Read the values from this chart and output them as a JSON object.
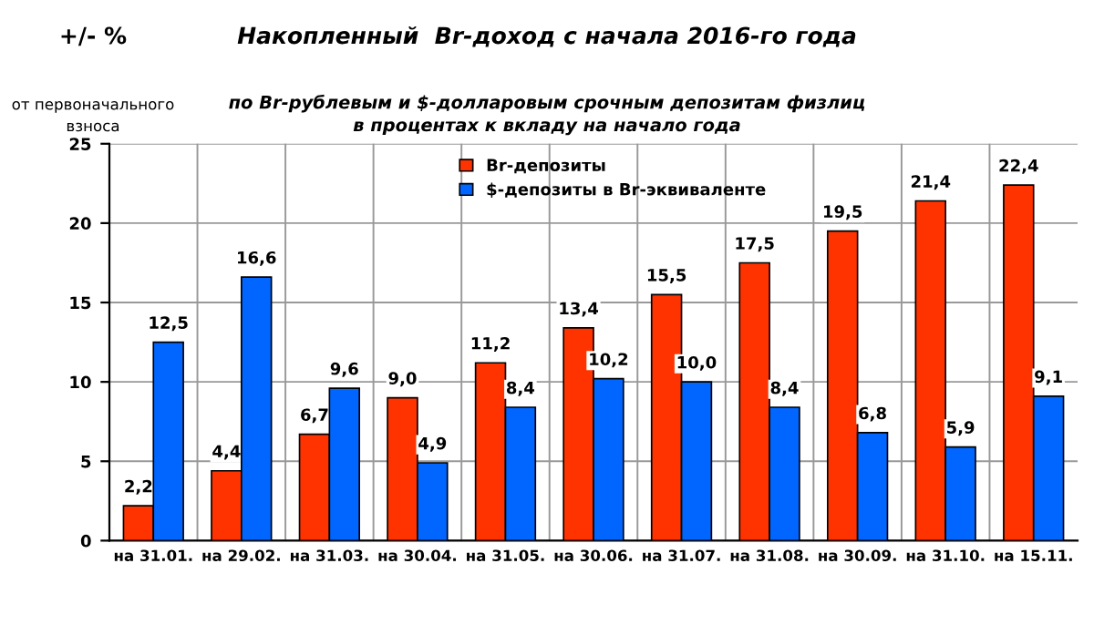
{
  "chart_data": {
    "type": "bar",
    "title": "Накопленный  Br-доход с начала 2016-го года",
    "subtitle": "по Br-рублевым и $-долларовым срочным депозитам физлиц\nв процентах к вкладу на начало года",
    "ylabel": "+/- %\nот первоначального\nвзноса",
    "categories": [
      "на 31.01.",
      "на 29.02.",
      "на 31.03.",
      "на 30.04.",
      "на 31.05.",
      "на 30.06.",
      "на 31.07.",
      "на 31.08.",
      "на 30.09.",
      "на 31.10.",
      "на 15.11."
    ],
    "series": [
      {
        "name": "Br-депозиты",
        "color": "#ff3300",
        "values": [
          2.2,
          4.4,
          6.7,
          9.0,
          11.2,
          13.4,
          15.5,
          17.5,
          19.5,
          21.4,
          22.4
        ],
        "value_labels": [
          "2,2",
          "4,4",
          "6,7",
          "9,0",
          "11,2",
          "13,4",
          "15,5",
          "17,5",
          "19,5",
          "21,4",
          "22,4"
        ]
      },
      {
        "name": "$-депозиты в Br-эквиваленте",
        "color": "#0066ff",
        "values": [
          12.5,
          16.6,
          9.6,
          4.9,
          8.4,
          10.2,
          10.0,
          8.4,
          6.8,
          5.9,
          9.1
        ],
        "value_labels": [
          "12,5",
          "16,6",
          "9,6",
          "4,9",
          "8,4",
          "10,2",
          "10,0",
          "8,4",
          "6,8",
          "5,9",
          "9,1"
        ]
      }
    ],
    "ylim": [
      0,
      25
    ],
    "yticks": [
      0,
      5,
      10,
      15,
      20,
      25
    ],
    "grid": true,
    "legend": "top"
  }
}
